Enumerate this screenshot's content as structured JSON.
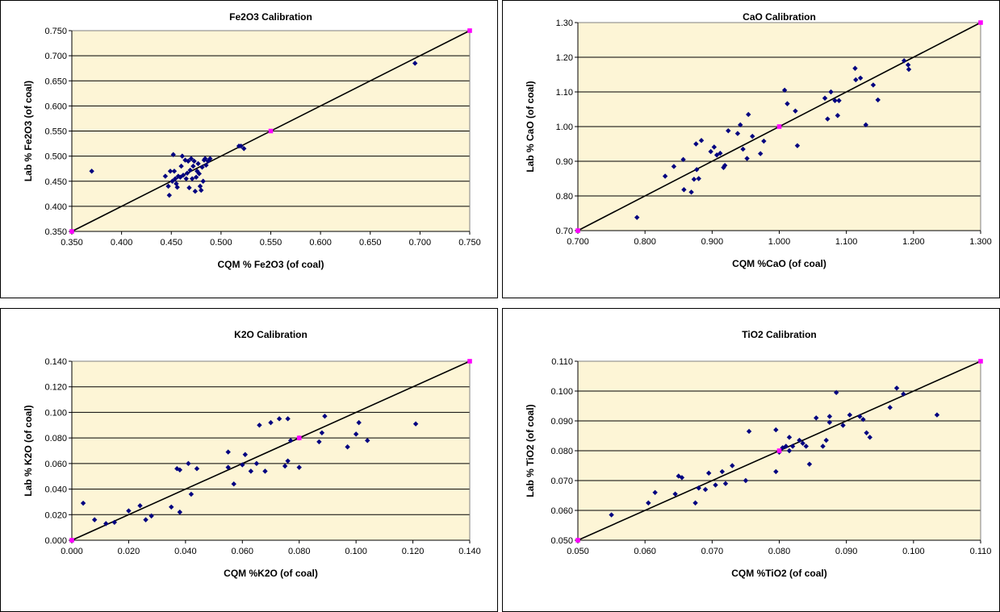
{
  "chart_data": [
    {
      "type": "scatter",
      "title": "Fe2O3 Calibration",
      "xlabel": "CQM % Fe2O3 (of coal)",
      "ylabel": "Lab % Fe2O3 (of coal)",
      "xlim": [
        0.35,
        0.75
      ],
      "ylim": [
        0.35,
        0.75
      ],
      "xticks": [
        "0.350",
        "0.400",
        "0.450",
        "0.500",
        "0.550",
        "0.600",
        "0.650",
        "0.700",
        "0.750"
      ],
      "yticks": [
        "0.350",
        "0.400",
        "0.450",
        "0.500",
        "0.550",
        "0.600",
        "0.650",
        "0.700",
        "0.750"
      ],
      "grid": true,
      "legend": "none",
      "colors": {
        "points": "#000080",
        "reference": "#ff00ff",
        "line": "#000000",
        "plot_bg": "#fdf5d6"
      },
      "series": [
        {
          "role": "measured",
          "points": [
            [
              0.37,
              0.47
            ],
            [
              0.444,
              0.46
            ],
            [
              0.447,
              0.44
            ],
            [
              0.448,
              0.422
            ],
            [
              0.449,
              0.47
            ],
            [
              0.451,
              0.45
            ],
            [
              0.452,
              0.503
            ],
            [
              0.453,
              0.47
            ],
            [
              0.454,
              0.455
            ],
            [
              0.455,
              0.445
            ],
            [
              0.456,
              0.438
            ],
            [
              0.457,
              0.46
            ],
            [
              0.459,
              0.458
            ],
            [
              0.46,
              0.48
            ],
            [
              0.461,
              0.5
            ],
            [
              0.462,
              0.462
            ],
            [
              0.464,
              0.492
            ],
            [
              0.465,
              0.455
            ],
            [
              0.466,
              0.466
            ],
            [
              0.467,
              0.49
            ],
            [
              0.468,
              0.437
            ],
            [
              0.469,
              0.472
            ],
            [
              0.47,
              0.495
            ],
            [
              0.471,
              0.455
            ],
            [
              0.472,
              0.48
            ],
            [
              0.473,
              0.49
            ],
            [
              0.474,
              0.43
            ],
            [
              0.475,
              0.458
            ],
            [
              0.476,
              0.47
            ],
            [
              0.477,
              0.485
            ],
            [
              0.478,
              0.465
            ],
            [
              0.479,
              0.44
            ],
            [
              0.48,
              0.432
            ],
            [
              0.481,
              0.478
            ],
            [
              0.482,
              0.45
            ],
            [
              0.483,
              0.492
            ],
            [
              0.484,
              0.495
            ],
            [
              0.485,
              0.482
            ],
            [
              0.487,
              0.49
            ],
            [
              0.489,
              0.495
            ],
            [
              0.518,
              0.52
            ],
            [
              0.52,
              0.52
            ],
            [
              0.523,
              0.515
            ],
            [
              0.695,
              0.685
            ]
          ]
        },
        {
          "role": "reference",
          "points": [
            [
              0.35,
              0.35
            ],
            [
              0.55,
              0.55
            ],
            [
              0.75,
              0.75
            ]
          ]
        }
      ],
      "line": [
        [
          0.35,
          0.35
        ],
        [
          0.75,
          0.75
        ]
      ]
    },
    {
      "type": "scatter",
      "title": "CaO Calibration",
      "xlabel": "CQM %CaO (of coal)",
      "ylabel": "Lab % CaO (of coal)",
      "xlim": [
        0.7,
        1.3
      ],
      "ylim": [
        0.7,
        1.3
      ],
      "xticks": [
        "0.700",
        "0.800",
        "0.900",
        "1.000",
        "1.100",
        "1.200",
        "1.300"
      ],
      "yticks": [
        "0.70",
        "0.80",
        "0.90",
        "1.00",
        "1.10",
        "1.20",
        "1.30"
      ],
      "grid": true,
      "legend": "none",
      "colors": {
        "points": "#000080",
        "reference": "#ff00ff",
        "line": "#000000",
        "plot_bg": "#fdf5d6"
      },
      "series": [
        {
          "role": "measured",
          "points": [
            [
              0.788,
              0.738
            ],
            [
              0.83,
              0.857
            ],
            [
              0.843,
              0.885
            ],
            [
              0.857,
              0.905
            ],
            [
              0.858,
              0.818
            ],
            [
              0.869,
              0.811
            ],
            [
              0.873,
              0.848
            ],
            [
              0.876,
              0.95
            ],
            [
              0.877,
              0.876
            ],
            [
              0.88,
              0.85
            ],
            [
              0.884,
              0.96
            ],
            [
              0.898,
              0.928
            ],
            [
              0.903,
              0.941
            ],
            [
              0.907,
              0.918
            ],
            [
              0.912,
              0.923
            ],
            [
              0.917,
              0.882
            ],
            [
              0.919,
              0.888
            ],
            [
              0.924,
              0.988
            ],
            [
              0.938,
              0.98
            ],
            [
              0.942,
              1.005
            ],
            [
              0.946,
              0.935
            ],
            [
              0.952,
              0.908
            ],
            [
              0.954,
              1.035
            ],
            [
              0.96,
              0.972
            ],
            [
              0.972,
              0.922
            ],
            [
              0.977,
              0.958
            ],
            [
              1.008,
              1.105
            ],
            [
              1.012,
              1.066
            ],
            [
              1.024,
              1.045
            ],
            [
              1.027,
              0.945
            ],
            [
              1.068,
              1.082
            ],
            [
              1.072,
              1.022
            ],
            [
              1.077,
              1.1
            ],
            [
              1.083,
              1.075
            ],
            [
              1.087,
              1.032
            ],
            [
              1.089,
              1.075
            ],
            [
              1.113,
              1.168
            ],
            [
              1.114,
              1.135
            ],
            [
              1.121,
              1.14
            ],
            [
              1.129,
              1.005
            ],
            [
              1.14,
              1.12
            ],
            [
              1.147,
              1.077
            ],
            [
              1.186,
              1.19
            ],
            [
              1.192,
              1.178
            ],
            [
              1.193,
              1.165
            ]
          ]
        },
        {
          "role": "reference",
          "points": [
            [
              0.7,
              0.7
            ],
            [
              1.0,
              1.0
            ],
            [
              1.3,
              1.3
            ]
          ]
        }
      ],
      "line": [
        [
          0.7,
          0.7
        ],
        [
          1.3,
          1.3
        ]
      ]
    },
    {
      "type": "scatter",
      "title": "K2O Calibration",
      "xlabel": "CQM %K2O (of coal)",
      "ylabel": "Lab % K2O (of coal)",
      "xlim": [
        0.0,
        0.14
      ],
      "ylim": [
        0.0,
        0.14
      ],
      "xticks": [
        "0.000",
        "0.020",
        "0.040",
        "0.060",
        "0.080",
        "0.100",
        "0.120",
        "0.140"
      ],
      "yticks": [
        "0.000",
        "0.020",
        "0.040",
        "0.060",
        "0.080",
        "0.100",
        "0.120",
        "0.140"
      ],
      "grid": true,
      "legend": "none",
      "colors": {
        "points": "#000080",
        "reference": "#ff00ff",
        "line": "#000000",
        "plot_bg": "#fdf5d6"
      },
      "series": [
        {
          "role": "measured",
          "points": [
            [
              0.004,
              0.029
            ],
            [
              0.008,
              0.016
            ],
            [
              0.012,
              0.013
            ],
            [
              0.015,
              0.014
            ],
            [
              0.02,
              0.023
            ],
            [
              0.024,
              0.027
            ],
            [
              0.026,
              0.016
            ],
            [
              0.028,
              0.019
            ],
            [
              0.035,
              0.026
            ],
            [
              0.037,
              0.056
            ],
            [
              0.038,
              0.055
            ],
            [
              0.038,
              0.022
            ],
            [
              0.041,
              0.06
            ],
            [
              0.042,
              0.036
            ],
            [
              0.044,
              0.056
            ],
            [
              0.055,
              0.069
            ],
            [
              0.055,
              0.057
            ],
            [
              0.057,
              0.044
            ],
            [
              0.06,
              0.059
            ],
            [
              0.061,
              0.067
            ],
            [
              0.063,
              0.054
            ],
            [
              0.065,
              0.06
            ],
            [
              0.066,
              0.09
            ],
            [
              0.068,
              0.054
            ],
            [
              0.07,
              0.092
            ],
            [
              0.073,
              0.095
            ],
            [
              0.075,
              0.058
            ],
            [
              0.076,
              0.095
            ],
            [
              0.076,
              0.062
            ],
            [
              0.077,
              0.078
            ],
            [
              0.08,
              0.057
            ],
            [
              0.08,
              0.08
            ],
            [
              0.087,
              0.077
            ],
            [
              0.088,
              0.084
            ],
            [
              0.089,
              0.097
            ],
            [
              0.097,
              0.073
            ],
            [
              0.1,
              0.083
            ],
            [
              0.101,
              0.092
            ],
            [
              0.104,
              0.078
            ],
            [
              0.121,
              0.091
            ]
          ]
        },
        {
          "role": "reference",
          "points": [
            [
              0.0,
              0.0
            ],
            [
              0.08,
              0.08
            ],
            [
              0.14,
              0.14
            ]
          ]
        }
      ],
      "line": [
        [
          0.0,
          0.0
        ],
        [
          0.14,
          0.14
        ]
      ]
    },
    {
      "type": "scatter",
      "title": "TiO2 Calibration",
      "xlabel": "CQM %TiO2 (of coal)",
      "ylabel": "Lab % TiO2 (of coal)",
      "xlim": [
        0.05,
        0.11
      ],
      "ylim": [
        0.05,
        0.11
      ],
      "xticks": [
        "0.050",
        "0.060",
        "0.070",
        "0.080",
        "0.090",
        "0.100",
        "0.110"
      ],
      "yticks": [
        "0.050",
        "0.060",
        "0.070",
        "0.080",
        "0.090",
        "0.100",
        "0.110"
      ],
      "grid": true,
      "legend": "none",
      "colors": {
        "points": "#000080",
        "reference": "#ff00ff",
        "line": "#000000",
        "plot_bg": "#fdf5d6"
      },
      "series": [
        {
          "role": "measured",
          "points": [
            [
              0.055,
              0.0585
            ],
            [
              0.0605,
              0.0625
            ],
            [
              0.0615,
              0.066
            ],
            [
              0.0645,
              0.0655
            ],
            [
              0.065,
              0.0715
            ],
            [
              0.0655,
              0.071
            ],
            [
              0.0675,
              0.0625
            ],
            [
              0.068,
              0.0675
            ],
            [
              0.069,
              0.067
            ],
            [
              0.0695,
              0.0725
            ],
            [
              0.0705,
              0.0685
            ],
            [
              0.0715,
              0.073
            ],
            [
              0.072,
              0.069
            ],
            [
              0.073,
              0.075
            ],
            [
              0.075,
              0.07
            ],
            [
              0.0755,
              0.0865
            ],
            [
              0.0795,
              0.087
            ],
            [
              0.0795,
              0.073
            ],
            [
              0.08,
              0.0795
            ],
            [
              0.0805,
              0.081
            ],
            [
              0.081,
              0.0815
            ],
            [
              0.0815,
              0.08
            ],
            [
              0.0815,
              0.0845
            ],
            [
              0.082,
              0.0815
            ],
            [
              0.083,
              0.0835
            ],
            [
              0.0835,
              0.0825
            ],
            [
              0.084,
              0.0815
            ],
            [
              0.0845,
              0.0755
            ],
            [
              0.0855,
              0.091
            ],
            [
              0.0865,
              0.0815
            ],
            [
              0.087,
              0.0835
            ],
            [
              0.0875,
              0.0915
            ],
            [
              0.0875,
              0.0895
            ],
            [
              0.0885,
              0.0995
            ],
            [
              0.0895,
              0.0885
            ],
            [
              0.0905,
              0.092
            ],
            [
              0.092,
              0.0915
            ],
            [
              0.0925,
              0.0905
            ],
            [
              0.093,
              0.086
            ],
            [
              0.0935,
              0.0845
            ],
            [
              0.0965,
              0.0945
            ],
            [
              0.0975,
              0.101
            ],
            [
              0.0985,
              0.099
            ],
            [
              0.1035,
              0.092
            ]
          ]
        },
        {
          "role": "reference",
          "points": [
            [
              0.05,
              0.05
            ],
            [
              0.08,
              0.08
            ],
            [
              0.11,
              0.11
            ]
          ]
        }
      ],
      "line": [
        [
          0.05,
          0.05
        ],
        [
          0.11,
          0.11
        ]
      ]
    }
  ]
}
